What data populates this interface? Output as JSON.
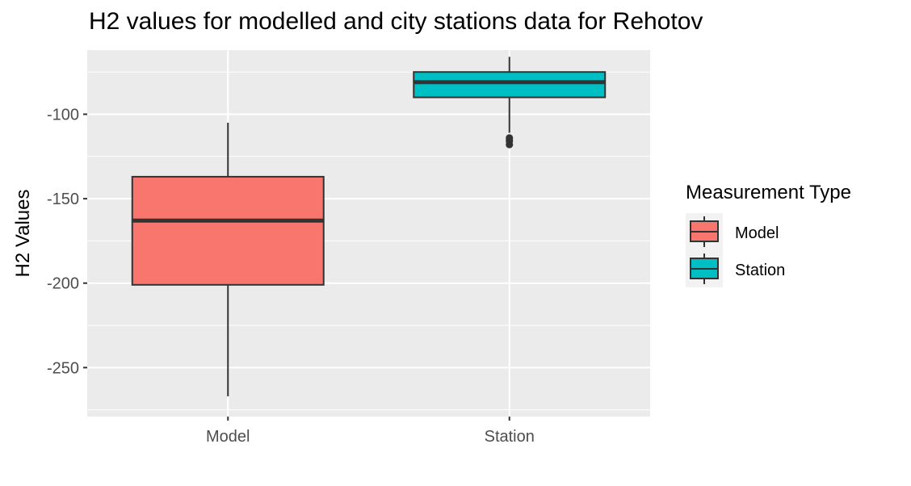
{
  "chart_data": {
    "type": "boxplot",
    "title": "H2 values for modelled and city stations data for Rehotov",
    "xlabel": "",
    "ylabel": "H2 Values",
    "ylim": [
      -279,
      -62
    ],
    "yticks": [
      -100,
      -150,
      -200,
      -250
    ],
    "ytick_labels": [
      "-100",
      "-150",
      "-200",
      "-250"
    ],
    "grid": true,
    "legend": {
      "title": "Measurement Type",
      "position": "right"
    },
    "categories": [
      "Model",
      "Station"
    ],
    "series": [
      {
        "name": "Model",
        "color": "#F8766D",
        "min": -267,
        "q1": -201,
        "median": -163,
        "q3": -137,
        "max": -105,
        "outliers": []
      },
      {
        "name": "Station",
        "color": "#00BFC4",
        "min": -111,
        "q1": -90,
        "median": -81,
        "q3": -75,
        "max": -66,
        "outliers": [
          -114,
          -115,
          -116,
          -118
        ]
      }
    ]
  }
}
